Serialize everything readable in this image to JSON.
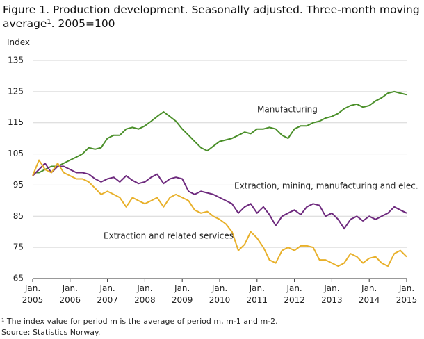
{
  "chart_data": {
    "type": "line",
    "title": "Figure 1. Production development. Seasonally adjusted. Three-month moving average¹. 2005=100",
    "y_label": "Index",
    "footnote": "¹ The index value for period m is the average of period m, m-1 and m-2.",
    "source": "Source: Statistics Norway.",
    "x": [
      2005,
      2005.17,
      2005.33,
      2005.5,
      2005.67,
      2005.83,
      2006,
      2006.17,
      2006.33,
      2006.5,
      2006.67,
      2006.83,
      2007,
      2007.17,
      2007.33,
      2007.5,
      2007.67,
      2007.83,
      2008,
      2008.17,
      2008.33,
      2008.5,
      2008.67,
      2008.83,
      2009,
      2009.17,
      2009.33,
      2009.5,
      2009.67,
      2009.83,
      2010,
      2010.17,
      2010.33,
      2010.5,
      2010.67,
      2010.83,
      2011,
      2011.17,
      2011.33,
      2011.5,
      2011.67,
      2011.83,
      2012,
      2012.17,
      2012.33,
      2012.5,
      2012.67,
      2012.83,
      2013,
      2013.17,
      2013.33,
      2013.5,
      2013.67,
      2013.83,
      2014,
      2014.17,
      2014.33,
      2014.5,
      2014.67,
      2014.83,
      2015
    ],
    "xlim": [
      2005,
      2015
    ],
    "xticks": [
      {
        "value": 2005,
        "label": "Jan.\n2005"
      },
      {
        "value": 2006,
        "label": "Jan.\n2006"
      },
      {
        "value": 2007,
        "label": "Jan.\n2007"
      },
      {
        "value": 2008,
        "label": "Jan.\n2008"
      },
      {
        "value": 2009,
        "label": "Jan.\n2009"
      },
      {
        "value": 2010,
        "label": "Jan.\n2010"
      },
      {
        "value": 2011,
        "label": "Jan.\n2011"
      },
      {
        "value": 2012,
        "label": "Jan.\n2012"
      },
      {
        "value": 2013,
        "label": "Jan.\n2013"
      },
      {
        "value": 2014,
        "label": "Jan.\n2014"
      },
      {
        "value": 2015,
        "label": "Jan.\n2015"
      }
    ],
    "ylim": [
      65,
      135
    ],
    "yticks": [
      65,
      75,
      85,
      95,
      105,
      115,
      125,
      135
    ],
    "grid": true,
    "series": [
      {
        "name": "Manufacturing",
        "color": "#4a8f29",
        "values": [
          99,
          99,
          100,
          101,
          101,
          102,
          103,
          104,
          105,
          107,
          106.5,
          107,
          110,
          111,
          111,
          113,
          113.5,
          113,
          114,
          115.5,
          117,
          118.5,
          117,
          115.5,
          113,
          111,
          109,
          107,
          106,
          107.5,
          109,
          109.5,
          110,
          111,
          112,
          111.5,
          113,
          113,
          113.5,
          113,
          111,
          110,
          113,
          114,
          114,
          115,
          115.5,
          116.5,
          117,
          118,
          119.5,
          120.5,
          121,
          120,
          120.5,
          122,
          123,
          124.5,
          125,
          124.5,
          124
        ]
      },
      {
        "name": "Extraction, mining, manufacturing and elec.",
        "color": "#6e2a7e",
        "values": [
          98,
          100,
          102,
          99,
          101,
          101,
          100,
          99,
          99,
          98.5,
          97,
          96,
          97,
          97.5,
          96,
          98,
          96.5,
          95.5,
          96,
          97.5,
          98.5,
          95.5,
          97,
          97.5,
          97,
          93,
          92,
          93,
          92.5,
          92,
          91,
          90,
          89,
          86,
          88,
          89,
          86,
          88,
          85.5,
          82,
          85,
          86,
          87,
          85.5,
          88,
          89,
          88.5,
          85,
          86,
          84,
          81,
          84,
          85,
          83.5,
          85,
          84,
          85,
          86,
          88,
          87,
          86
        ]
      },
      {
        "name": "Extraction and related services",
        "color": "#e8b02a",
        "values": [
          98,
          103,
          100,
          99,
          102,
          99,
          98,
          97,
          97,
          96,
          94,
          92,
          93,
          92,
          91,
          88,
          91,
          90,
          89,
          90,
          91,
          88,
          91,
          92,
          91,
          90,
          87,
          86,
          86.5,
          85,
          84,
          82.5,
          80,
          74,
          76,
          80,
          78,
          75,
          71,
          70,
          74,
          75,
          74,
          75.5,
          75.5,
          75,
          71,
          71,
          70,
          69,
          70,
          73,
          72,
          70,
          71.5,
          72,
          70,
          69,
          73,
          74,
          72
        ]
      }
    ]
  }
}
